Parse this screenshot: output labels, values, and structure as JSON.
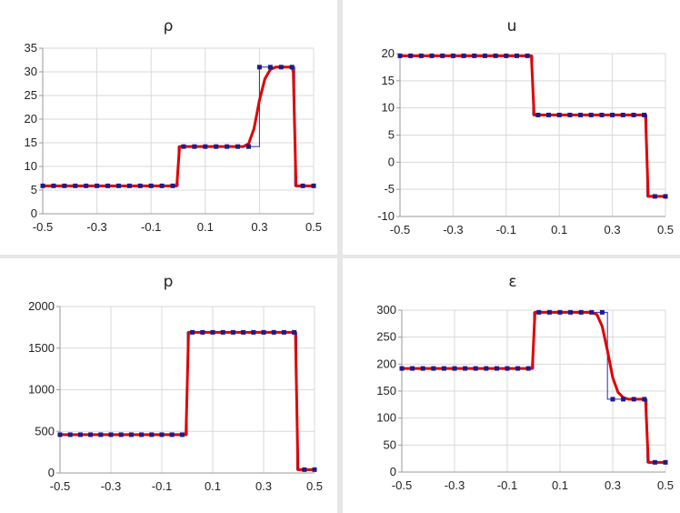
{
  "chart_data": [
    {
      "type": "line",
      "title": "ρ",
      "xlabel": "",
      "ylabel": "",
      "xlim": [
        -0.5,
        0.5
      ],
      "ylim": [
        0,
        35
      ],
      "xticks": [
        "-0.5",
        "-0.3",
        "-0.1",
        "0.1",
        "0.3",
        "0.5"
      ],
      "yticks": [
        "0",
        "5",
        "10",
        "15",
        "20",
        "25",
        "30",
        "35"
      ],
      "grid": true,
      "series": [
        {
          "role": "exact",
          "x": [
            -0.5,
            0.0,
            0.0,
            0.3,
            0.3,
            0.43,
            0.43,
            0.5
          ],
          "y": [
            5.9,
            5.9,
            14.2,
            14.2,
            31.0,
            31.0,
            5.9,
            5.9
          ],
          "markers": [
            -0.5,
            -0.46,
            -0.42,
            -0.38,
            -0.34,
            -0.3,
            -0.26,
            -0.22,
            -0.18,
            -0.14,
            -0.1,
            -0.06,
            -0.02,
            0.02,
            0.06,
            0.1,
            0.14,
            0.18,
            0.22,
            0.26,
            0.3,
            0.34,
            0.38,
            0.42,
            0.46,
            0.5
          ]
        },
        {
          "role": "numeric",
          "x": [
            -0.5,
            -0.005,
            0.005,
            0.24,
            0.26,
            0.28,
            0.3,
            0.32,
            0.34,
            0.36,
            0.42,
            0.425,
            0.435,
            0.5
          ],
          "y": [
            5.9,
            5.9,
            14.2,
            14.2,
            14.8,
            18.0,
            24.0,
            28.5,
            30.5,
            31.0,
            31.0,
            30.0,
            5.9,
            5.9
          ]
        }
      ]
    },
    {
      "type": "line",
      "title": "u",
      "xlabel": "",
      "ylabel": "",
      "xlim": [
        -0.5,
        0.5
      ],
      "ylim": [
        -10,
        20
      ],
      "xticks": [
        "-0.5",
        "-0.3",
        "-0.1",
        "0.1",
        "0.3",
        "0.5"
      ],
      "yticks": [
        "-10",
        "-5",
        "0",
        "5",
        "10",
        "15",
        "20"
      ],
      "grid": true,
      "series": [
        {
          "role": "exact",
          "x": [
            -0.5,
            0.0,
            0.0,
            0.43,
            0.43,
            0.5
          ],
          "y": [
            19.6,
            19.6,
            8.7,
            8.7,
            -6.3,
            -6.3
          ],
          "markers": [
            -0.5,
            -0.46,
            -0.42,
            -0.38,
            -0.34,
            -0.3,
            -0.26,
            -0.22,
            -0.18,
            -0.14,
            -0.1,
            -0.06,
            -0.02,
            0.02,
            0.06,
            0.1,
            0.14,
            0.18,
            0.22,
            0.26,
            0.3,
            0.34,
            0.38,
            0.42,
            0.46,
            0.5
          ]
        },
        {
          "role": "numeric",
          "x": [
            -0.5,
            -0.005,
            0.005,
            0.425,
            0.435,
            0.5
          ],
          "y": [
            19.6,
            19.6,
            8.7,
            8.7,
            -6.3,
            -6.3
          ]
        }
      ]
    },
    {
      "type": "line",
      "title": "p",
      "xlabel": "",
      "ylabel": "",
      "xlim": [
        -0.5,
        0.5
      ],
      "ylim": [
        0,
        2000
      ],
      "xticks": [
        "-0.5",
        "-0.3",
        "-0.1",
        "0.1",
        "0.3",
        "0.5"
      ],
      "yticks": [
        "0",
        "500",
        "1000",
        "1500",
        "2000"
      ],
      "grid": true,
      "series": [
        {
          "role": "exact",
          "x": [
            -0.5,
            0.0,
            0.0,
            0.43,
            0.43,
            0.5
          ],
          "y": [
            460,
            460,
            1690,
            1690,
            40,
            40
          ],
          "markers": [
            -0.5,
            -0.46,
            -0.42,
            -0.38,
            -0.34,
            -0.3,
            -0.26,
            -0.22,
            -0.18,
            -0.14,
            -0.1,
            -0.06,
            -0.02,
            0.02,
            0.06,
            0.1,
            0.14,
            0.18,
            0.22,
            0.26,
            0.3,
            0.34,
            0.38,
            0.42,
            0.46,
            0.5
          ]
        },
        {
          "role": "numeric",
          "x": [
            -0.5,
            -0.005,
            0.005,
            0.425,
            0.435,
            0.5
          ],
          "y": [
            460,
            460,
            1690,
            1690,
            40,
            40
          ]
        }
      ]
    },
    {
      "type": "line",
      "title": "ε",
      "xlabel": "",
      "ylabel": "",
      "xlim": [
        -0.5,
        0.5
      ],
      "ylim": [
        0,
        300
      ],
      "xticks": [
        "-0.5",
        "-0.3",
        "-0.1",
        "0.1",
        "0.3",
        "0.5"
      ],
      "yticks": [
        "0",
        "50",
        "100",
        "150",
        "200",
        "250",
        "300"
      ],
      "grid": true,
      "series": [
        {
          "role": "exact",
          "x": [
            -0.5,
            0.0,
            0.0,
            0.28,
            0.28,
            0.43,
            0.43,
            0.5
          ],
          "y": [
            192,
            192,
            296,
            296,
            135,
            135,
            18,
            18
          ],
          "markers": [
            -0.5,
            -0.46,
            -0.42,
            -0.38,
            -0.34,
            -0.3,
            -0.26,
            -0.22,
            -0.18,
            -0.14,
            -0.1,
            -0.06,
            -0.02,
            0.02,
            0.06,
            0.1,
            0.14,
            0.18,
            0.22,
            0.26,
            0.3,
            0.34,
            0.38,
            0.42,
            0.46,
            0.5
          ]
        },
        {
          "role": "numeric",
          "x": [
            -0.5,
            -0.005,
            0.005,
            0.22,
            0.24,
            0.26,
            0.28,
            0.3,
            0.32,
            0.34,
            0.36,
            0.42,
            0.425,
            0.435,
            0.5
          ],
          "y": [
            192,
            192,
            296,
            296,
            292,
            270,
            225,
            175,
            148,
            138,
            135,
            135,
            130,
            18,
            18
          ]
        }
      ]
    }
  ]
}
